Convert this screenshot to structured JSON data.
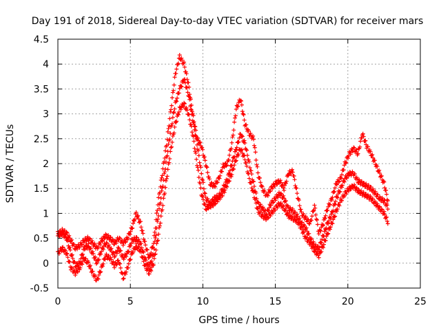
{
  "chart_data": {
    "type": "scatter",
    "title": "Day 191 of 2018, Sidereal Day-to-day VTEC variation (SDTVAR) for receiver mars",
    "xlabel": "GPS time / hours",
    "ylabel": "SDTVAR / TECUs",
    "xlim": [
      0,
      25
    ],
    "ylim": [
      -0.5,
      4.5
    ],
    "xticks": [
      0,
      5,
      10,
      15,
      20,
      25
    ],
    "yticks": [
      -0.5,
      0,
      0.5,
      1,
      1.5,
      2,
      2.5,
      3,
      3.5,
      4,
      4.5
    ],
    "xtick_labels": [
      "0",
      "5",
      "10",
      "15",
      "20",
      "25"
    ],
    "ytick_labels": [
      "-0.5",
      "0",
      "0.5",
      "1",
      "1.5",
      "2",
      "2.5",
      "3",
      "3.5",
      "4",
      "4.5"
    ],
    "grid": true,
    "marker": "+",
    "series": [
      {
        "name": "SDTVAR",
        "color": "#ff0000",
        "bands": [
          [
            [
              0.0,
              0.55
            ],
            [
              0.3,
              0.6
            ],
            [
              0.6,
              0.5
            ],
            [
              0.9,
              0.2
            ],
            [
              1.2,
              -0.05
            ],
            [
              1.5,
              0.0
            ],
            [
              1.8,
              0.3
            ],
            [
              2.1,
              0.35
            ],
            [
              2.4,
              0.2
            ],
            [
              2.7,
              0.0
            ],
            [
              3.0,
              0.25
            ],
            [
              3.3,
              0.4
            ],
            [
              3.6,
              0.3
            ],
            [
              3.9,
              0.15
            ],
            [
              4.2,
              0.3
            ],
            [
              4.5,
              0.1
            ],
            [
              4.8,
              0.2
            ],
            [
              5.1,
              0.45
            ],
            [
              5.4,
              0.5
            ],
            [
              5.7,
              0.4
            ],
            [
              6.0,
              0.1
            ],
            [
              6.3,
              -0.1
            ],
            [
              6.6,
              0.2
            ],
            [
              6.9,
              0.9
            ],
            [
              7.2,
              1.5
            ],
            [
              7.5,
              2.1
            ],
            [
              7.8,
              2.7
            ],
            [
              8.1,
              3.2
            ],
            [
              8.4,
              3.5
            ],
            [
              8.7,
              3.7
            ],
            [
              9.0,
              3.4
            ],
            [
              9.3,
              2.9
            ],
            [
              9.6,
              2.4
            ],
            [
              9.9,
              1.8
            ],
            [
              10.2,
              1.3
            ],
            [
              10.5,
              1.2
            ],
            [
              10.8,
              1.3
            ],
            [
              11.1,
              1.35
            ],
            [
              11.4,
              1.5
            ],
            [
              11.7,
              1.7
            ],
            [
              12.0,
              2.0
            ],
            [
              12.3,
              2.3
            ],
            [
              12.6,
              2.6
            ],
            [
              12.9,
              2.4
            ],
            [
              13.2,
              2.0
            ],
            [
              13.5,
              1.6
            ],
            [
              13.8,
              1.2
            ],
            [
              14.1,
              1.1
            ],
            [
              14.4,
              1.0
            ],
            [
              14.7,
              1.2
            ],
            [
              15.0,
              1.3
            ],
            [
              15.3,
              1.4
            ],
            [
              15.6,
              1.3
            ],
            [
              15.9,
              1.1
            ],
            [
              16.2,
              1.05
            ],
            [
              16.5,
              0.95
            ],
            [
              16.8,
              0.8
            ],
            [
              17.1,
              0.7
            ],
            [
              17.4,
              0.5
            ],
            [
              17.7,
              0.35
            ],
            [
              18.0,
              0.3
            ],
            [
              18.3,
              0.55
            ],
            [
              18.6,
              0.8
            ],
            [
              18.9,
              1.0
            ],
            [
              19.2,
              1.3
            ],
            [
              19.5,
              1.5
            ],
            [
              19.8,
              1.7
            ],
            [
              20.1,
              1.8
            ],
            [
              20.4,
              1.8
            ],
            [
              20.7,
              1.65
            ],
            [
              21.0,
              1.6
            ],
            [
              21.3,
              1.55
            ],
            [
              21.6,
              1.5
            ],
            [
              21.9,
              1.4
            ],
            [
              22.2,
              1.3
            ],
            [
              22.5,
              1.25
            ],
            [
              22.8,
              1.1
            ]
          ],
          [
            [
              0.0,
              0.2
            ],
            [
              0.3,
              0.3
            ],
            [
              0.6,
              0.2
            ],
            [
              0.9,
              -0.1
            ],
            [
              1.2,
              -0.2
            ],
            [
              1.5,
              -0.1
            ],
            [
              1.8,
              0.1
            ],
            [
              2.1,
              0.0
            ],
            [
              2.4,
              -0.2
            ],
            [
              2.7,
              -0.35
            ],
            [
              3.0,
              -0.1
            ],
            [
              3.3,
              0.15
            ],
            [
              3.6,
              0.1
            ],
            [
              3.9,
              -0.05
            ],
            [
              4.2,
              0.05
            ],
            [
              4.5,
              -0.3
            ],
            [
              4.8,
              -0.1
            ],
            [
              5.1,
              0.2
            ],
            [
              5.4,
              0.35
            ],
            [
              5.7,
              0.25
            ],
            [
              6.0,
              -0.05
            ],
            [
              6.3,
              -0.2
            ],
            [
              6.6,
              0.0
            ],
            [
              6.9,
              0.5
            ],
            [
              7.2,
              1.1
            ],
            [
              7.5,
              1.7
            ],
            [
              7.8,
              2.3
            ],
            [
              8.1,
              2.8
            ],
            [
              8.4,
              3.1
            ],
            [
              8.7,
              3.2
            ],
            [
              9.0,
              3.0
            ],
            [
              9.3,
              2.6
            ],
            [
              9.6,
              2.0
            ],
            [
              9.9,
              1.4
            ],
            [
              10.2,
              1.1
            ],
            [
              10.5,
              1.15
            ],
            [
              10.8,
              1.2
            ],
            [
              11.1,
              1.3
            ],
            [
              11.4,
              1.4
            ],
            [
              11.7,
              1.6
            ],
            [
              12.0,
              1.8
            ],
            [
              12.3,
              2.1
            ],
            [
              12.6,
              2.3
            ],
            [
              12.9,
              2.1
            ],
            [
              13.2,
              1.7
            ],
            [
              13.5,
              1.4
            ],
            [
              13.8,
              1.05
            ],
            [
              14.1,
              0.95
            ],
            [
              14.4,
              0.9
            ],
            [
              14.7,
              1.0
            ],
            [
              15.0,
              1.1
            ],
            [
              15.3,
              1.2
            ],
            [
              15.6,
              1.1
            ],
            [
              15.9,
              0.95
            ],
            [
              16.2,
              0.9
            ],
            [
              16.5,
              0.85
            ],
            [
              16.8,
              0.7
            ],
            [
              17.1,
              0.5
            ],
            [
              17.4,
              0.4
            ],
            [
              17.7,
              0.25
            ],
            [
              18.0,
              0.15
            ],
            [
              18.3,
              0.35
            ],
            [
              18.6,
              0.6
            ],
            [
              18.9,
              0.8
            ],
            [
              19.2,
              1.05
            ],
            [
              19.5,
              1.25
            ],
            [
              19.8,
              1.4
            ],
            [
              20.1,
              1.5
            ],
            [
              20.4,
              1.55
            ],
            [
              20.7,
              1.45
            ],
            [
              21.0,
              1.4
            ],
            [
              21.3,
              1.35
            ],
            [
              21.6,
              1.3
            ],
            [
              21.9,
              1.2
            ],
            [
              22.2,
              1.1
            ],
            [
              22.5,
              1.0
            ],
            [
              22.8,
              0.8
            ]
          ],
          [
            [
              0.0,
              0.6
            ],
            [
              0.3,
              0.65
            ],
            [
              0.6,
              0.6
            ],
            [
              0.9,
              0.45
            ],
            [
              1.2,
              0.3
            ],
            [
              1.5,
              0.35
            ],
            [
              1.8,
              0.45
            ],
            [
              2.1,
              0.5
            ],
            [
              2.4,
              0.4
            ],
            [
              2.7,
              0.3
            ],
            [
              3.0,
              0.45
            ],
            [
              3.3,
              0.55
            ],
            [
              3.6,
              0.5
            ],
            [
              3.9,
              0.4
            ],
            [
              4.2,
              0.5
            ],
            [
              4.5,
              0.4
            ],
            [
              4.8,
              0.5
            ],
            [
              5.1,
              0.7
            ],
            [
              5.4,
              1.0
            ],
            [
              5.7,
              0.8
            ],
            [
              6.0,
              0.4
            ],
            [
              6.3,
              0.1
            ],
            [
              6.6,
              0.4
            ],
            [
              6.9,
              1.2
            ],
            [
              7.2,
              1.8
            ],
            [
              7.5,
              2.4
            ],
            [
              7.8,
              3.1
            ],
            [
              8.1,
              3.8
            ],
            [
              8.4,
              4.15
            ],
            [
              8.7,
              4.0
            ],
            [
              9.0,
              3.6
            ],
            [
              9.3,
              3.0
            ],
            [
              9.6,
              2.5
            ],
            [
              9.9,
              2.35
            ],
            [
              10.2,
              2.0
            ],
            [
              10.5,
              1.6
            ],
            [
              10.8,
              1.55
            ],
            [
              11.1,
              1.7
            ],
            [
              11.4,
              1.95
            ],
            [
              11.7,
              2.0
            ],
            [
              12.0,
              2.4
            ],
            [
              12.3,
              3.1
            ],
            [
              12.6,
              3.3
            ],
            [
              12.9,
              2.8
            ],
            [
              13.2,
              2.6
            ],
            [
              13.5,
              2.5
            ],
            [
              13.8,
              1.8
            ],
            [
              14.1,
              1.5
            ],
            [
              14.4,
              1.35
            ],
            [
              14.7,
              1.5
            ],
            [
              15.0,
              1.6
            ],
            [
              15.3,
              1.65
            ],
            [
              15.6,
              1.5
            ],
            [
              15.9,
              1.8
            ],
            [
              16.2,
              1.85
            ],
            [
              16.5,
              1.4
            ],
            [
              16.8,
              1.0
            ],
            [
              17.1,
              0.9
            ],
            [
              17.4,
              0.8
            ],
            [
              17.7,
              1.15
            ],
            [
              18.0,
              0.6
            ],
            [
              18.3,
              0.8
            ],
            [
              18.6,
              1.1
            ],
            [
              18.9,
              1.3
            ],
            [
              19.2,
              1.6
            ],
            [
              19.5,
              1.7
            ],
            [
              19.8,
              2.0
            ],
            [
              20.1,
              2.2
            ],
            [
              20.4,
              2.3
            ],
            [
              20.7,
              2.2
            ],
            [
              21.0,
              2.6
            ],
            [
              21.3,
              2.35
            ],
            [
              21.6,
              2.2
            ],
            [
              21.9,
              2.0
            ],
            [
              22.2,
              1.8
            ],
            [
              22.5,
              1.6
            ],
            [
              22.8,
              1.2
            ]
          ]
        ]
      }
    ]
  }
}
